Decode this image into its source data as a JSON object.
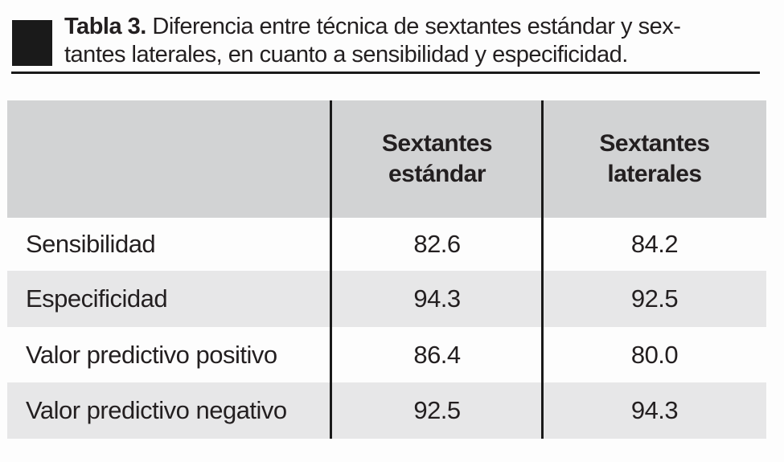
{
  "caption": {
    "label": "Tabla 3.",
    "line1": "Diferencia entre técnica de sextantes estándar y sex-",
    "line2": "tantes laterales, en cuanto a sensibilidad y especificidad."
  },
  "table": {
    "columns": [
      {
        "line1": "Sextantes",
        "line2": "estándar"
      },
      {
        "line1": "Sextantes",
        "line2": "laterales"
      }
    ],
    "rows": [
      {
        "label": "Sensibilidad",
        "standard": "82.6",
        "lateral": "84.2"
      },
      {
        "label": "Especificidad",
        "standard": "94.3",
        "lateral": "92.5"
      },
      {
        "label": "Valor predictivo positivo",
        "standard": "86.4",
        "lateral": "80.0"
      },
      {
        "label": "Valor predictivo negativo",
        "standard": "92.5",
        "lateral": "94.3"
      }
    ]
  },
  "colors": {
    "header_bg": "#d2d3d4",
    "alt_row_bg": "#e7e7e8",
    "text": "#231f20",
    "rule_and_marker": "#1a1a1a"
  },
  "chart_data": {
    "type": "table",
    "title": "Tabla 3. Diferencia entre técnica de sextantes estándar y sextantes laterales, en cuanto a sensibilidad y especificidad.",
    "columns": [
      "",
      "Sextantes estándar",
      "Sextantes laterales"
    ],
    "rows": [
      [
        "Sensibilidad",
        82.6,
        84.2
      ],
      [
        "Especificidad",
        94.3,
        92.5
      ],
      [
        "Valor predictivo positivo",
        86.4,
        80.0
      ],
      [
        "Valor predictivo negativo",
        92.5,
        94.3
      ]
    ]
  }
}
